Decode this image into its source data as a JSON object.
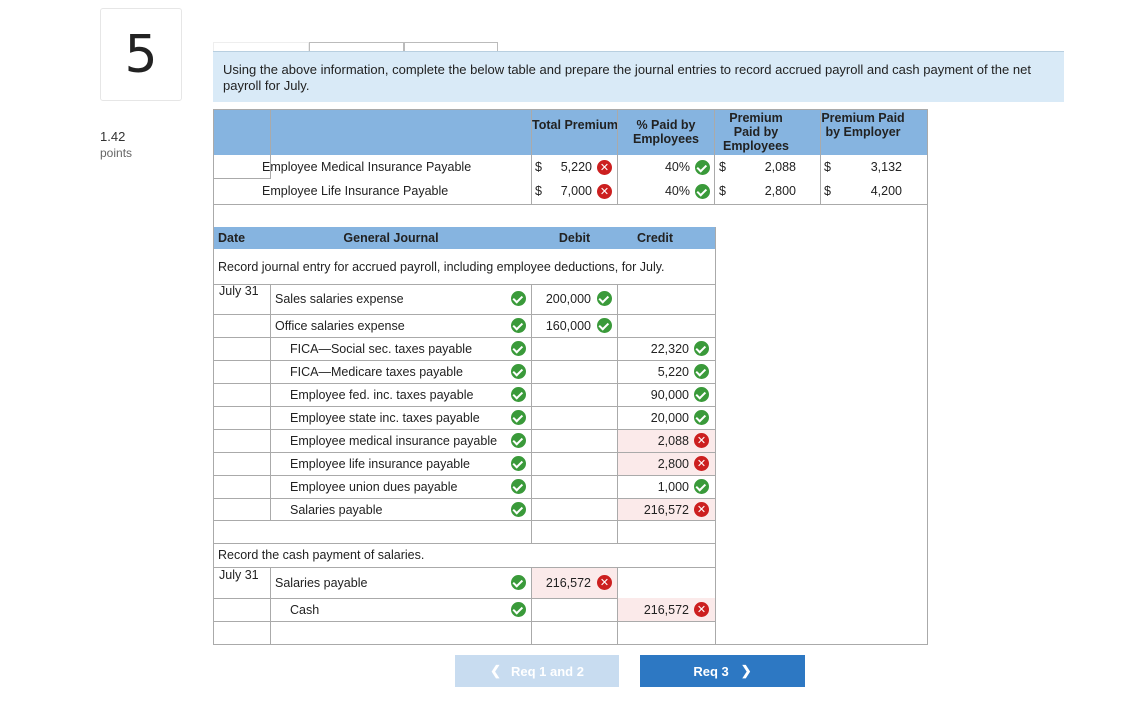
{
  "question": {
    "number": "5",
    "points_value": "1.42",
    "points_label": "points"
  },
  "instruction": "Using the above information, complete the below table and prepare the journal entries to record accrued payroll and cash payment of the net payroll for July.",
  "premium_table": {
    "headers": {
      "total_premium": "Total Premium",
      "pct_paid_by_employees": "% Paid by Employees",
      "premium_paid_by_employees": "Premium Paid by Employees",
      "premium_paid_by_employer": "Premium Paid by Employer"
    },
    "rows": [
      {
        "label": "Employee Medical Insurance Payable",
        "dollar": "$",
        "total": "5,220",
        "total_status": "incorrect",
        "pct": "40%",
        "pct_status": "correct",
        "emp_dollar": "$",
        "by_employees": "2,088",
        "er_dollar": "$",
        "by_employer": "3,132"
      },
      {
        "label": "Employee Life Insurance Payable",
        "dollar": "$",
        "total": "7,000",
        "total_status": "incorrect",
        "pct": "40%",
        "pct_status": "correct",
        "emp_dollar": "$",
        "by_employees": "2,800",
        "er_dollar": "$",
        "by_employer": "4,200"
      }
    ]
  },
  "journal": {
    "headers": {
      "date": "Date",
      "general_journal": "General Journal",
      "debit": "Debit",
      "credit": "Credit"
    },
    "entry1_description": "Record journal entry for accrued payroll, including employee deductions, for July.",
    "entry1_date": "July 31",
    "entry1_lines": [
      {
        "account": "Sales salaries expense",
        "debit": "200,000",
        "credit": ""
      },
      {
        "account": "Office salaries expense",
        "debit": "160,000",
        "credit": ""
      },
      {
        "account": "FICA—Social sec. taxes payable",
        "debit": "",
        "credit": "22,320"
      },
      {
        "account": "FICA—Medicare taxes payable",
        "debit": "",
        "credit": "5,220"
      },
      {
        "account": "Employee fed. inc. taxes payable",
        "debit": "",
        "credit": "90,000"
      },
      {
        "account": "Employee state inc. taxes payable",
        "debit": "",
        "credit": "20,000"
      },
      {
        "account": "Employee medical insurance payable",
        "debit": "",
        "credit": "2,088"
      },
      {
        "account": "Employee life insurance payable",
        "debit": "",
        "credit": "2,800"
      },
      {
        "account": "Employee union dues payable",
        "debit": "",
        "credit": "1,000"
      },
      {
        "account": "Salaries payable",
        "debit": "",
        "credit": "216,572"
      }
    ],
    "entry2_description": "Record the cash payment of salaries.",
    "entry2_date": "July 31",
    "entry2_lines": [
      {
        "account": "Salaries payable",
        "debit": "216,572",
        "credit": ""
      },
      {
        "account": "Cash",
        "debit": "",
        "credit": "216,572"
      }
    ]
  },
  "nav": {
    "prev_label": "Req 1 and 2",
    "next_label": "Req 3"
  },
  "colors": {
    "header_blue": "#86b4e0",
    "instruction_bg": "#d9eaf7",
    "correct_green": "#3a9a3a",
    "incorrect_red": "#cc1f1f",
    "next_button": "#2d78c3",
    "prev_button": "#c8dcf0"
  }
}
